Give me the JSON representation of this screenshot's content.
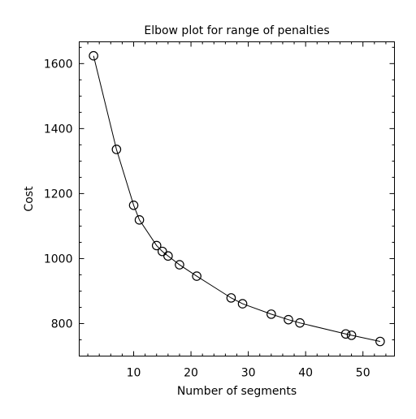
{
  "chart_data": {
    "type": "line",
    "title": "Elbow plot for range of penalties",
    "xlabel": "Number of segments",
    "ylabel": "Cost",
    "xlim": [
      0.5,
      55.5
    ],
    "ylim": [
      700,
      1667
    ],
    "grid": false,
    "legend": "none",
    "x_ticks": [
      10,
      20,
      30,
      40,
      50
    ],
    "y_ticks": [
      800,
      1000,
      1200,
      1400,
      1600
    ],
    "colors": {
      "line": "#000000",
      "marker_edge": "#000000",
      "marker_face": "none",
      "axes": "#000000",
      "background": "#ffffff"
    },
    "series": [
      {
        "x": [
          3,
          7,
          10,
          11,
          14,
          15,
          16,
          18,
          21,
          27,
          29,
          34,
          37,
          39,
          47,
          48,
          53
        ],
        "y": [
          1624,
          1336,
          1164,
          1119,
          1040,
          1022,
          1008,
          981,
          946,
          879,
          861,
          829,
          812,
          802,
          768,
          764,
          745
        ],
        "marker": "circle-open"
      }
    ]
  }
}
